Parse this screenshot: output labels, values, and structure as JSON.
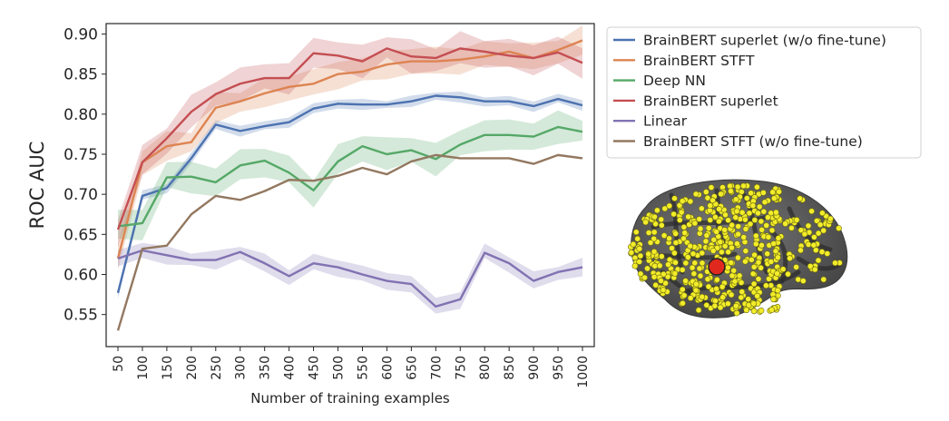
{
  "chart_data": {
    "type": "line",
    "title": "",
    "xlabel": "Number of training examples",
    "ylabel": "ROC AUC",
    "x": [
      50,
      100,
      150,
      200,
      250,
      300,
      350,
      400,
      450,
      500,
      550,
      600,
      650,
      700,
      750,
      800,
      850,
      900,
      950,
      1000
    ],
    "x_tick_labels": [
      "50",
      "100",
      "150",
      "200",
      "250",
      "300",
      "350",
      "400",
      "450",
      "500",
      "550",
      "600",
      "650",
      "700",
      "750",
      "800",
      "850",
      "900",
      "950",
      "1000"
    ],
    "y_ticks": [
      "0.55",
      "0.60",
      "0.65",
      "0.70",
      "0.75",
      "0.80",
      "0.85",
      "0.90"
    ],
    "ylim": [
      0.51,
      0.913
    ],
    "grid": false,
    "legend_position": "outside-right",
    "series": [
      {
        "name": "BrainBERT superlet (w/o fine-tune)",
        "color": "#4c72b0",
        "values": [
          0.577,
          0.698,
          0.708,
          0.745,
          0.787,
          0.779,
          0.785,
          0.79,
          0.807,
          0.813,
          0.812,
          0.812,
          0.816,
          0.823,
          0.821,
          0.816,
          0.816,
          0.81,
          0.819,
          0.811
        ],
        "band": 0.006
      },
      {
        "name": "BrainBERT STFT",
        "color": "#dd8452",
        "values": [
          0.62,
          0.74,
          0.76,
          0.765,
          0.808,
          0.816,
          0.826,
          0.834,
          0.838,
          0.85,
          0.853,
          0.862,
          0.866,
          0.866,
          0.868,
          0.872,
          0.878,
          0.87,
          0.88,
          0.892
        ],
        "band": 0.016
      },
      {
        "name": "Deep NN",
        "color": "#55a868",
        "values": [
          0.66,
          0.664,
          0.721,
          0.722,
          0.715,
          0.736,
          0.742,
          0.727,
          0.705,
          0.741,
          0.76,
          0.75,
          0.755,
          0.744,
          0.762,
          0.774,
          0.774,
          0.772,
          0.784,
          0.778
        ],
        "band": 0.018
      },
      {
        "name": "BrainBERT superlet",
        "color": "#c44e52",
        "values": [
          0.656,
          0.74,
          0.77,
          0.803,
          0.825,
          0.838,
          0.845,
          0.845,
          0.876,
          0.873,
          0.866,
          0.882,
          0.872,
          0.87,
          0.882,
          0.878,
          0.873,
          0.87,
          0.877,
          0.864
        ],
        "band": 0.018
      },
      {
        "name": "Linear",
        "color": "#8172b2",
        "values": [
          0.62,
          0.63,
          0.624,
          0.618,
          0.618,
          0.628,
          0.614,
          0.598,
          0.614,
          0.609,
          0.6,
          0.592,
          0.588,
          0.56,
          0.569,
          0.627,
          0.614,
          0.592,
          0.603,
          0.609
        ],
        "band": 0.01
      },
      {
        "name": "BrainBERT STFT (w/o fine-tune)",
        "color": "#937860",
        "values": [
          0.53,
          0.632,
          0.636,
          0.675,
          0.698,
          0.693,
          0.704,
          0.718,
          0.717,
          0.723,
          0.733,
          0.725,
          0.741,
          0.749,
          0.745,
          0.745,
          0.745,
          0.738,
          0.749,
          0.745
        ],
        "band": 0.0
      }
    ]
  },
  "inset": {
    "description": "brain-surface-electrode-map",
    "surface_color": "#5a5a5a",
    "electrode_color": "#f2ec2a",
    "target_electrode_color": "#e0281e"
  }
}
